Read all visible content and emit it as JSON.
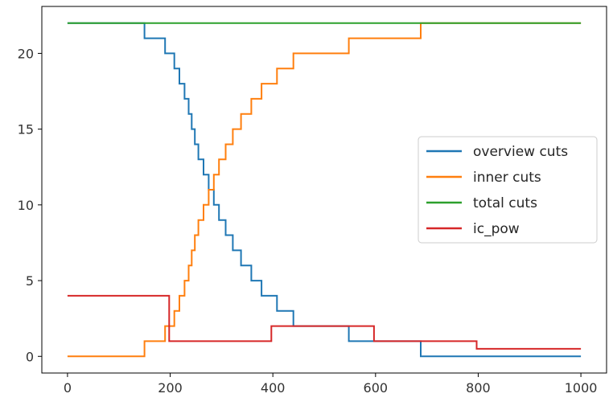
{
  "chart_data": {
    "type": "line",
    "title": "",
    "xlabel": "",
    "ylabel": "",
    "xlim": [
      -50,
      1050
    ],
    "ylim": [
      -1.1,
      23.1
    ],
    "xticks": [
      0,
      200,
      400,
      600,
      800,
      1000
    ],
    "yticks": [
      0,
      5,
      10,
      15,
      20
    ],
    "xtick_labels": [
      "0",
      "200",
      "400",
      "600",
      "800",
      "1000"
    ],
    "ytick_labels": [
      "0",
      "5",
      "10",
      "15",
      "20"
    ],
    "legend_position": "center-right",
    "series": [
      {
        "name": "overview cuts",
        "color": "#1f77b4",
        "points": [
          [
            0,
            22
          ],
          [
            150,
            22
          ],
          [
            150,
            21
          ],
          [
            190,
            21
          ],
          [
            190,
            20
          ],
          [
            208,
            20
          ],
          [
            208,
            19
          ],
          [
            218,
            19
          ],
          [
            218,
            18
          ],
          [
            228,
            18
          ],
          [
            228,
            17
          ],
          [
            236,
            17
          ],
          [
            236,
            16
          ],
          [
            242,
            16
          ],
          [
            242,
            15
          ],
          [
            248,
            15
          ],
          [
            248,
            14
          ],
          [
            255,
            14
          ],
          [
            255,
            13
          ],
          [
            265,
            13
          ],
          [
            265,
            12
          ],
          [
            275,
            12
          ],
          [
            275,
            11
          ],
          [
            285,
            11
          ],
          [
            285,
            10
          ],
          [
            295,
            10
          ],
          [
            295,
            9
          ],
          [
            308,
            9
          ],
          [
            308,
            8
          ],
          [
            322,
            8
          ],
          [
            322,
            7
          ],
          [
            338,
            7
          ],
          [
            338,
            6
          ],
          [
            358,
            6
          ],
          [
            358,
            5
          ],
          [
            378,
            5
          ],
          [
            378,
            4
          ],
          [
            408,
            4
          ],
          [
            408,
            3
          ],
          [
            440,
            3
          ],
          [
            440,
            2
          ],
          [
            485,
            2
          ],
          [
            485,
            2
          ],
          [
            548,
            2
          ],
          [
            548,
            1
          ],
          [
            688,
            1
          ],
          [
            688,
            0
          ],
          [
            1000,
            0
          ]
        ]
      },
      {
        "name": "inner cuts",
        "color": "#ff7f0e",
        "points": [
          [
            0,
            0
          ],
          [
            150,
            0
          ],
          [
            150,
            1
          ],
          [
            190,
            1
          ],
          [
            190,
            2
          ],
          [
            208,
            2
          ],
          [
            208,
            3
          ],
          [
            218,
            3
          ],
          [
            218,
            4
          ],
          [
            228,
            4
          ],
          [
            228,
            5
          ],
          [
            236,
            5
          ],
          [
            236,
            6
          ],
          [
            242,
            6
          ],
          [
            242,
            7
          ],
          [
            248,
            7
          ],
          [
            248,
            8
          ],
          [
            255,
            8
          ],
          [
            255,
            9
          ],
          [
            265,
            9
          ],
          [
            265,
            10
          ],
          [
            275,
            10
          ],
          [
            275,
            11
          ],
          [
            285,
            11
          ],
          [
            285,
            12
          ],
          [
            295,
            12
          ],
          [
            295,
            13
          ],
          [
            308,
            13
          ],
          [
            308,
            14
          ],
          [
            322,
            14
          ],
          [
            322,
            15
          ],
          [
            338,
            15
          ],
          [
            338,
            16
          ],
          [
            358,
            16
          ],
          [
            358,
            17
          ],
          [
            378,
            17
          ],
          [
            378,
            18
          ],
          [
            408,
            18
          ],
          [
            408,
            19
          ],
          [
            440,
            19
          ],
          [
            440,
            20
          ],
          [
            548,
            20
          ],
          [
            548,
            21
          ],
          [
            688,
            21
          ],
          [
            688,
            22
          ],
          [
            1000,
            22
          ]
        ]
      },
      {
        "name": "total cuts",
        "color": "#2ca02c",
        "points": [
          [
            0,
            22
          ],
          [
            1000,
            22
          ]
        ]
      },
      {
        "name": "ic_pow",
        "color": "#d62728",
        "points": [
          [
            0,
            4
          ],
          [
            198,
            4
          ],
          [
            198,
            1
          ],
          [
            397,
            1
          ],
          [
            397,
            2
          ],
          [
            597,
            2
          ],
          [
            597,
            1
          ],
          [
            797,
            1
          ],
          [
            797,
            0.5
          ],
          [
            1000,
            0.5
          ]
        ]
      }
    ]
  }
}
